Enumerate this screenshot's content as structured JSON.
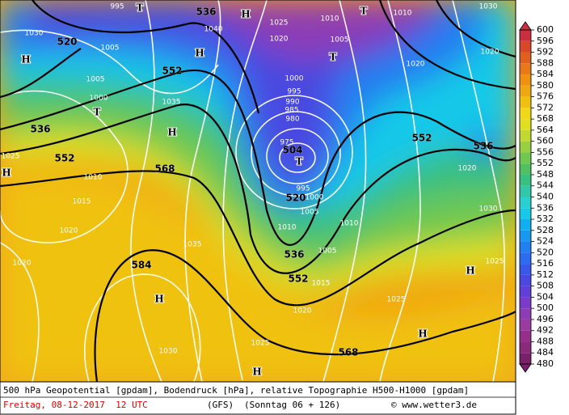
{
  "map": {
    "title_line": "500 hPa Geopotential [gpdam], Bodendruck [hPa], relative Topographie H500-H1000 [gpdam]",
    "date": "Freitag, 08-12-2017  12 UTC",
    "model": "(GFS)",
    "run": "(Sonntag 06 + 126)",
    "credit": "© www.wetter3.de",
    "geopotential_labels": [
      "536",
      "520",
      "552",
      "536",
      "552",
      "568",
      "504",
      "520",
      "552",
      "536",
      "584",
      "536",
      "552",
      "568"
    ],
    "pressure_labels": [
      "995",
      "1030",
      "1005",
      "1005",
      "1000",
      "1035",
      "1025",
      "1010",
      "1015",
      "1020",
      "1020",
      "1035",
      "1030",
      "1040",
      "1025",
      "1020",
      "1010",
      "1005",
      "1010",
      "1030",
      "1020",
      "1020",
      "1000",
      "995",
      "990",
      "985",
      "980",
      "975",
      "995",
      "1000",
      "1005",
      "1010",
      "1010",
      "1015",
      "1020",
      "1025",
      "1025",
      "1020",
      "1030",
      "1025",
      "1005"
    ],
    "pressure_centers": [
      "T",
      "H",
      "T",
      "H",
      "H",
      "T",
      "T",
      "H",
      "H",
      "T",
      "H",
      "H",
      "H",
      "H"
    ]
  },
  "legend": {
    "ticks": [
      480,
      484,
      488,
      492,
      496,
      500,
      504,
      508,
      512,
      516,
      520,
      524,
      528,
      532,
      536,
      540,
      544,
      548,
      552,
      556,
      560,
      564,
      568,
      572,
      576,
      580,
      584,
      588,
      592,
      596,
      600
    ],
    "colors": [
      "#7a1f6a",
      "#8a2a7a",
      "#962f8c",
      "#9b3aa0",
      "#8e3cb4",
      "#7a3cc8",
      "#6040d8",
      "#4a48e0",
      "#3858e8",
      "#2c6cf0",
      "#2080f0",
      "#1898f0",
      "#10b0f0",
      "#18c8e8",
      "#28d0d0",
      "#30c8a8",
      "#38c080",
      "#50c060",
      "#70c850",
      "#98d040",
      "#c0d830",
      "#e0e020",
      "#f0d818",
      "#f0c010",
      "#f0a810",
      "#f09010",
      "#e87818",
      "#e06020",
      "#d84828",
      "#c83040"
    ]
  }
}
